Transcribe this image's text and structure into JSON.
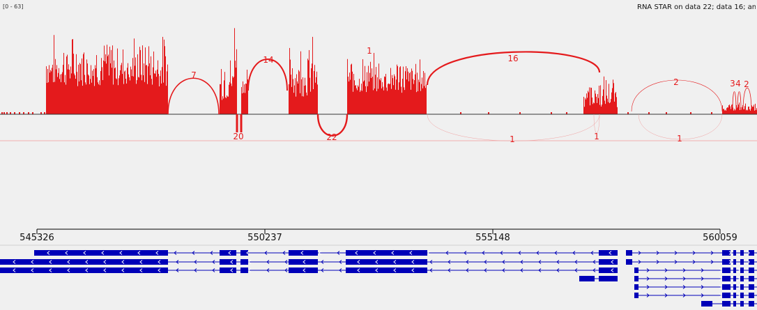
{
  "track": {
    "data_range": "[0 - 63]",
    "name": "RNA STAR on data 22; data 16; an",
    "color": "#e41a1c",
    "gene_color": "#0000b8"
  },
  "ruler": {
    "ticks": [
      "545326",
      "550237",
      "555148",
      "560059"
    ]
  },
  "junctions": {
    "above": [
      "7",
      "20",
      "14",
      "22",
      "1",
      "16",
      "2",
      "3",
      "4",
      "2"
    ],
    "below": [
      "1",
      "1",
      "1"
    ]
  }
}
